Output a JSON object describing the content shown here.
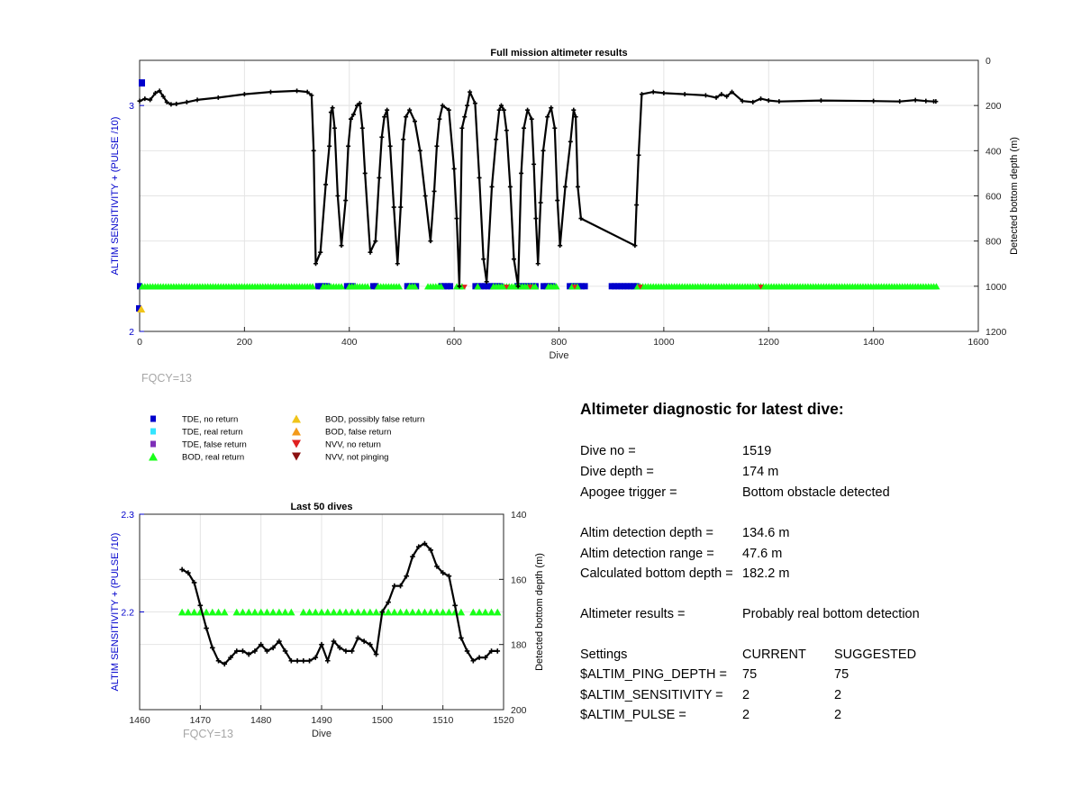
{
  "colors": {
    "axis_left": "#0000cc",
    "tde_no_return": "#0000cc",
    "tde_real_return": "#33e5ff",
    "tde_false_return": "#7e2fb8",
    "bod_real_return": "#19ff19",
    "bod_possibly_false": "#f0c419",
    "bod_false_return": "#f39a1b",
    "nvv_no_return": "#e02020",
    "nvv_not_pinging": "#8b1010",
    "depth_line": "#000000",
    "fqcy_text": "#a6a6a6"
  },
  "chart_data": [
    {
      "type": "line",
      "title": "Full mission altimeter results",
      "xlabel": "Dive",
      "ylabel_left": "ALTIM SENSITIVITY + (PULSE /10)",
      "ylabel_right": "Detected bottom depth (m)",
      "xlim": [
        0,
        1600
      ],
      "ylim_left": [
        2,
        3.2
      ],
      "ylim_right_reversed": [
        0,
        1200
      ],
      "x_ticks": [
        "0",
        "200",
        "400",
        "600",
        "800",
        "1000",
        "1200",
        "1400",
        "1600"
      ],
      "x_tick_values": [
        0,
        200,
        400,
        600,
        800,
        1000,
        1200,
        1400,
        1600
      ],
      "y_left_ticks": [
        "2",
        "3"
      ],
      "y_left_tick_values": [
        2,
        3
      ],
      "y_right_ticks": [
        "0",
        "200",
        "400",
        "600",
        "800",
        "1000",
        "1200"
      ],
      "y_right_tick_values": [
        0,
        200,
        400,
        600,
        800,
        1000,
        1200
      ],
      "annotation": "FQCY=13",
      "grid": true,
      "bottom_depth_series": {
        "name": "Detected bottom depth",
        "x": [
          0,
          10,
          20,
          30,
          38,
          45,
          52,
          60,
          70,
          90,
          110,
          150,
          200,
          250,
          300,
          320,
          328,
          332,
          336,
          345,
          355,
          362,
          365,
          368,
          372,
          378,
          385,
          393,
          398,
          403,
          408,
          415,
          420,
          425,
          430,
          440,
          450,
          457,
          462,
          467,
          472,
          478,
          485,
          492,
          498,
          503,
          508,
          515,
          525,
          535,
          545,
          555,
          562,
          567,
          572,
          578,
          590,
          600,
          605,
          610,
          615,
          620,
          625,
          630,
          640,
          648,
          656,
          662,
          672,
          680,
          686,
          690,
          695,
          700,
          707,
          714,
          722,
          728,
          733,
          740,
          748,
          752,
          756,
          760,
          765,
          770,
          778,
          785,
          792,
          797,
          802,
          812,
          822,
          828,
          832,
          836,
          842,
          945,
          948,
          952,
          958,
          980,
          1000,
          1040,
          1080,
          1100,
          1110,
          1120,
          1130,
          1150,
          1170,
          1185,
          1200,
          1220,
          1300,
          1400,
          1450,
          1480,
          1500,
          1515,
          1519
        ],
        "y": [
          180,
          170,
          175,
          145,
          135,
          160,
          185,
          195,
          193,
          185,
          175,
          165,
          150,
          140,
          135,
          140,
          155,
          400,
          900,
          850,
          550,
          380,
          230,
          210,
          300,
          600,
          820,
          620,
          380,
          260,
          240,
          200,
          190,
          300,
          500,
          850,
          800,
          520,
          340,
          250,
          220,
          380,
          650,
          900,
          650,
          350,
          250,
          220,
          270,
          400,
          600,
          800,
          580,
          380,
          260,
          200,
          220,
          480,
          700,
          1000,
          300,
          250,
          200,
          140,
          190,
          520,
          880,
          980,
          560,
          350,
          220,
          200,
          220,
          310,
          560,
          880,
          1000,
          500,
          300,
          220,
          260,
          460,
          700,
          900,
          630,
          400,
          250,
          210,
          300,
          620,
          820,
          560,
          360,
          220,
          250,
          560,
          700,
          820,
          640,
          420,
          150,
          140,
          145,
          150,
          155,
          165,
          150,
          160,
          140,
          180,
          185,
          170,
          178,
          182,
          178,
          180,
          182,
          176,
          180,
          182,
          182
        ]
      },
      "sensitivity_series": [
        {
          "name": "BOD, real return",
          "x_start": 5,
          "x_end": 1520,
          "value": 2.2,
          "gaps": [
            [
              335,
              345
            ],
            [
              390,
              395
            ],
            [
              440,
              450
            ],
            [
              500,
              510
            ],
            [
              530,
              545
            ],
            [
              580,
              600
            ],
            [
              620,
              640
            ],
            [
              650,
              670
            ],
            [
              760,
              775
            ],
            [
              800,
              820
            ],
            [
              840,
              945
            ]
          ]
        },
        {
          "name": "TDE, no return",
          "x_ranges": [
            [
              0,
              4
            ],
            [
              340,
              360
            ],
            [
              395,
              410
            ],
            [
              445,
              455
            ],
            [
              510,
              530
            ],
            [
              575,
              595
            ],
            [
              640,
              690
            ],
            [
              720,
              760
            ],
            [
              770,
              790
            ],
            [
              820,
              850
            ],
            [
              900,
              950
            ]
          ],
          "value": 2.2
        }
      ]
    },
    {
      "type": "line",
      "title": "Last 50 dives",
      "xlabel": "Dive",
      "ylabel_left": "ALTIM SENSITIVITY + (PULSE /10)",
      "ylabel_right": "Detected bottom depth (m)",
      "xlim": [
        1460,
        1520
      ],
      "ylim_left": [
        2.1,
        2.3
      ],
      "ylim_right_reversed": [
        140,
        200
      ],
      "x_ticks": [
        "1460",
        "1470",
        "1480",
        "1490",
        "1500",
        "1510",
        "1520"
      ],
      "x_tick_values": [
        1460,
        1470,
        1480,
        1490,
        1500,
        1510,
        1520
      ],
      "y_left_ticks": [
        "2.2",
        "2.3"
      ],
      "y_left_tick_values": [
        2.2,
        2.3
      ],
      "y_right_ticks": [
        "140",
        "160",
        "180",
        "200"
      ],
      "y_right_tick_values": [
        140,
        160,
        180,
        200
      ],
      "annotation": "FQCY=13",
      "grid": true,
      "bottom_depth_series": {
        "name": "Detected bottom depth",
        "x": [
          1467,
          1468,
          1469,
          1470,
          1471,
          1472,
          1473,
          1474,
          1475,
          1476,
          1477,
          1478,
          1479,
          1480,
          1481,
          1482,
          1483,
          1484,
          1485,
          1486,
          1487,
          1488,
          1489,
          1490,
          1491,
          1492,
          1493,
          1494,
          1495,
          1496,
          1497,
          1498,
          1499,
          1500,
          1501,
          1502,
          1503,
          1504,
          1505,
          1506,
          1507,
          1508,
          1509,
          1510,
          1511,
          1512,
          1513,
          1514,
          1515,
          1516,
          1517,
          1518,
          1519
        ],
        "y": [
          157,
          158,
          161,
          168,
          175,
          181,
          185,
          186,
          184,
          182,
          182,
          183,
          182,
          180,
          182,
          181,
          179,
          182,
          185,
          185,
          185,
          185,
          184,
          180,
          185,
          179,
          181,
          182,
          182,
          178,
          179,
          180,
          183,
          170,
          167,
          162,
          162,
          159,
          153,
          150,
          149,
          151,
          156,
          158,
          159,
          168,
          178,
          182,
          185,
          184,
          184,
          182,
          182
        ]
      },
      "sensitivity_series": {
        "name": "BOD, real return",
        "x": [
          1467,
          1468,
          1469,
          1470,
          1471,
          1472,
          1473,
          1474,
          1476,
          1477,
          1478,
          1479,
          1480,
          1481,
          1482,
          1483,
          1484,
          1485,
          1487,
          1488,
          1489,
          1490,
          1491,
          1492,
          1493,
          1494,
          1495,
          1496,
          1497,
          1498,
          1499,
          1500,
          1501,
          1502,
          1503,
          1504,
          1505,
          1506,
          1507,
          1508,
          1509,
          1510,
          1511,
          1512,
          1513,
          1515,
          1516,
          1517,
          1518,
          1519
        ],
        "value": 2.2
      }
    }
  ],
  "legend": {
    "col1": [
      {
        "label": "TDE, no return",
        "marker": "square",
        "color_key": "tde_no_return"
      },
      {
        "label": "TDE, real return",
        "marker": "square",
        "color_key": "tde_real_return"
      },
      {
        "label": "TDE, false return",
        "marker": "square",
        "color_key": "tde_false_return"
      },
      {
        "label": "BOD, real return",
        "marker": "triangle-up",
        "color_key": "bod_real_return"
      }
    ],
    "col2": [
      {
        "label": "BOD, possibly false return",
        "marker": "triangle-up",
        "color_key": "bod_possibly_false"
      },
      {
        "label": "BOD, false return",
        "marker": "triangle-up",
        "color_key": "bod_false_return"
      },
      {
        "label": "NVV, no return",
        "marker": "triangle-down",
        "color_key": "nvv_no_return"
      },
      {
        "label": "NVV, not pinging",
        "marker": "triangle-down",
        "color_key": "nvv_not_pinging"
      }
    ]
  },
  "diagnostic": {
    "title": "Altimeter diagnostic for latest dive:",
    "dive_no_label": "Dive no =",
    "dive_no": "1519",
    "dive_depth_label": "Dive depth =",
    "dive_depth": "174 m",
    "apogee_label": "Apogee trigger =",
    "apogee": "Bottom obstacle detected",
    "det_depth_label": "Altim detection depth =",
    "det_depth": "134.6 m",
    "det_range_label": "Altim detection range =",
    "det_range": "47.6 m",
    "calc_depth_label": "Calculated bottom depth =",
    "calc_depth": "182.2 m",
    "results_label": "Altimeter results =",
    "results": "Probably real bottom detection",
    "settings_label": "Settings",
    "current_label": "CURRENT",
    "suggested_label": "SUGGESTED",
    "settings": [
      {
        "name": "$ALTIM_PING_DEPTH =",
        "current": "75",
        "suggested": "75"
      },
      {
        "name": "$ALTIM_SENSITIVITY =",
        "current": "2",
        "suggested": "2"
      },
      {
        "name": "$ALTIM_PULSE =",
        "current": "2",
        "suggested": "2"
      }
    ]
  }
}
